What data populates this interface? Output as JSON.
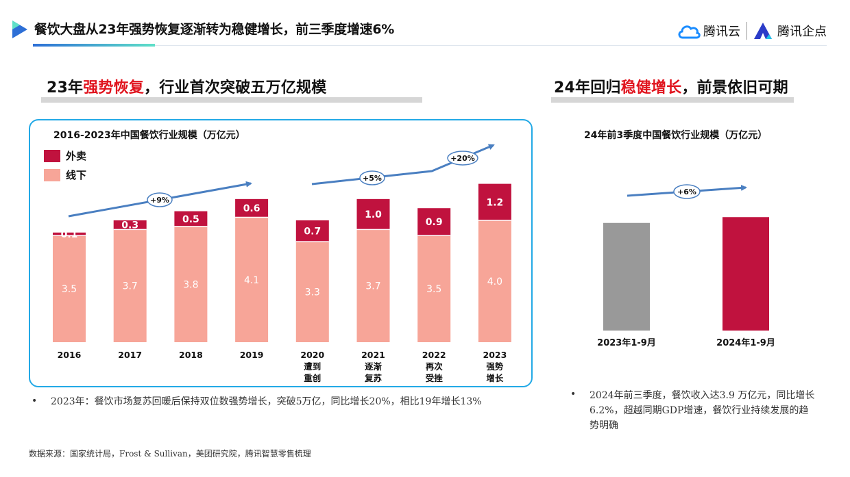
{
  "header": {
    "title": "餐饮大盘从23年强势恢复逐渐转为稳健增长，前三季度增速6%",
    "brand_cloud": "腾讯云",
    "brand_qidian": "腾讯企点",
    "underline_gradient": [
      "#2d6fd6",
      "#5fe0c8"
    ]
  },
  "left_section": {
    "title_pre": "23年",
    "title_highlight": "强势恢复",
    "title_post": "，行业首次突破五万亿规模",
    "bullet": "2023年：餐饮市场复苏回暖后保持双位数强势增长，突破5万亿，同比增长20%，相比19年增长13%"
  },
  "right_section": {
    "title_pre": "24年回归",
    "title_highlight": "稳健增长",
    "title_post": "，前景依旧可期",
    "bullet": "2024年前三季度，餐饮收入达3.9 万亿元，同比增长 6.2%，超越同期GDP增速，餐饮行业持续发展的趋势明确"
  },
  "footnote": "数据来源：国家统计局，Frost & Sullivan，美团研究院，腾讯智慧零售梳理",
  "colors": {
    "accent_red": "#e0141e",
    "takeout": "#c0123e",
    "offline": "#f7a598",
    "gray_bar": "#999999",
    "arrow": "#4a7fc1",
    "frame": "#22a9e6"
  },
  "chart_data": [
    {
      "type": "bar",
      "stacked": true,
      "title": "2016-2023年中国餐饮行业规模（万亿元）",
      "categories": [
        [
          "2016"
        ],
        [
          "2017"
        ],
        [
          "2018"
        ],
        [
          "2019"
        ],
        [
          "2020",
          "遭到",
          "重创"
        ],
        [
          "2021",
          "逐渐",
          "复苏"
        ],
        [
          "2022",
          "再次",
          "受挫"
        ],
        [
          "2023",
          "强势",
          "增长"
        ]
      ],
      "series": [
        {
          "name": "线下",
          "values": [
            3.5,
            3.7,
            3.8,
            4.1,
            3.3,
            3.7,
            3.5,
            4.0
          ],
          "labels": [
            "3.5",
            "3.7",
            "3.8",
            "4.1",
            "3.3",
            "3.7",
            "3.5",
            "4.0"
          ]
        },
        {
          "name": "外卖",
          "values": [
            0.1,
            0.3,
            0.5,
            0.6,
            0.7,
            1.0,
            0.9,
            1.2
          ],
          "labels": [
            "0.1",
            "0.3",
            "0.5",
            "0.6",
            "0.7",
            "1.0",
            "0.9",
            "1.2"
          ]
        }
      ],
      "legend": "top-left",
      "annotations": [
        "+9%",
        "+5%",
        "+20%"
      ]
    },
    {
      "type": "bar",
      "title": "24年前3季度中国餐饮行业规模（万亿元）",
      "categories": [
        "2023年1-9月",
        "2024年1-9月"
      ],
      "values": [
        3.7,
        3.9
      ],
      "annotations": [
        "+6%"
      ]
    }
  ]
}
